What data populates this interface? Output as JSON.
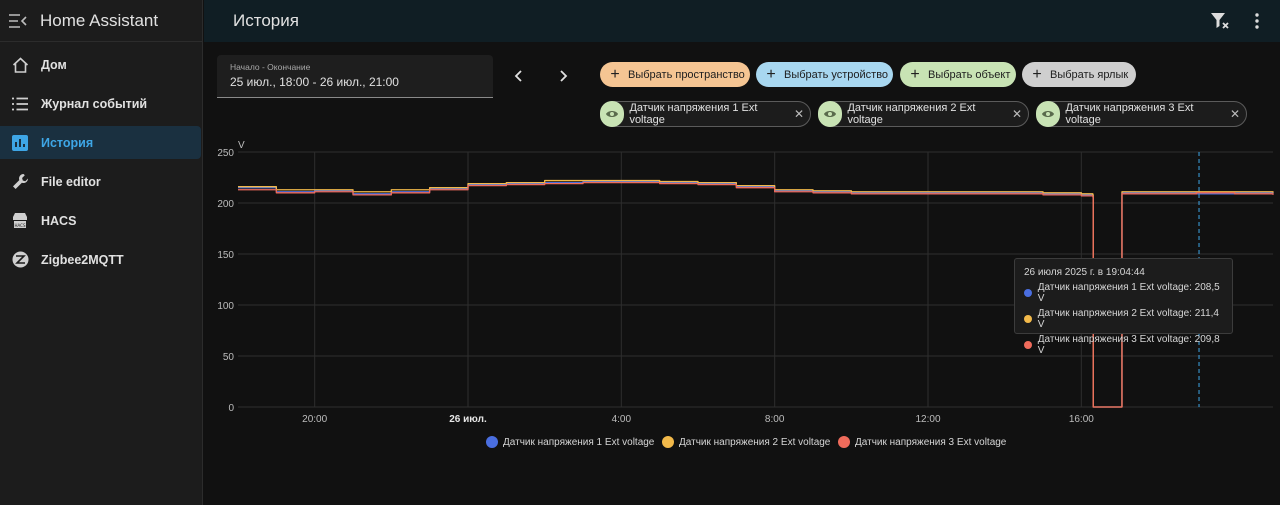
{
  "app": {
    "title": "Home Assistant"
  },
  "sidebar": {
    "items": [
      {
        "label": "Дом",
        "icon": "home-icon"
      },
      {
        "label": "Журнал событий",
        "icon": "logbook-icon"
      },
      {
        "label": "История",
        "icon": "history-chart-icon",
        "active": true
      },
      {
        "label": "File editor",
        "icon": "wrench-icon"
      },
      {
        "label": "HACS",
        "icon": "hacs-icon"
      },
      {
        "label": "Zigbee2MQTT",
        "icon": "zigbee-icon"
      }
    ]
  },
  "header": {
    "title": "История"
  },
  "date_picker": {
    "label": "Начало - Окончание",
    "value": "25 июл., 18:00 - 26 июл., 21:00"
  },
  "target_chips": [
    {
      "label": "Выбрать пространство",
      "color": "#f5c593"
    },
    {
      "label": "Выбрать устройство",
      "color": "#a8d7f0"
    },
    {
      "label": "Выбрать объект",
      "color": "#c8e3b4"
    },
    {
      "label": "Выбрать ярлык",
      "color": "#cfcfcf"
    }
  ],
  "entities": [
    {
      "label": "Датчик напряжения 1 Ext voltage"
    },
    {
      "label": "Датчик напряжения 2 Ext voltage"
    },
    {
      "label": "Датчик напряжения 3 Ext voltage"
    }
  ],
  "tooltip": {
    "title": "26 июля 2025 г. в 19:04:44",
    "rows": [
      {
        "text": "Датчик напряжения 1 Ext voltage: 208,5 V",
        "color": "#4a6ee0"
      },
      {
        "text": "Датчик напряжения 2 Ext voltage: 211,4 V",
        "color": "#f2b94a"
      },
      {
        "text": "Датчик напряжения 3 Ext voltage: 209,8 V",
        "color": "#ef6b5b"
      }
    ]
  },
  "chart_data": {
    "type": "line",
    "ylabel": "V",
    "ylim": [
      0,
      250
    ],
    "yticks": [
      "0",
      "50",
      "100",
      "150",
      "200",
      "250"
    ],
    "xticks": [
      {
        "label": "20:00",
        "hour": 2,
        "bold": false
      },
      {
        "label": "26 июл.",
        "hour": 6,
        "bold": true
      },
      {
        "label": "4:00",
        "hour": 10,
        "bold": false
      },
      {
        "label": "8:00",
        "hour": 14,
        "bold": false
      },
      {
        "label": "12:00",
        "hour": 18,
        "bold": false
      },
      {
        "label": "16:00",
        "hour": 22,
        "bold": false
      }
    ],
    "x_range_hours_from_start": [
      0,
      27
    ],
    "cursor_hour": 25.07,
    "grid": true,
    "legend_position": "bottom-center",
    "series": [
      {
        "name": "Датчик напряжения 1 Ext voltage",
        "color": "#4a6ee0",
        "points": [
          [
            0,
            215
          ],
          [
            1,
            211
          ],
          [
            2,
            212
          ],
          [
            3,
            209
          ],
          [
            4,
            211
          ],
          [
            5,
            214
          ],
          [
            6,
            218
          ],
          [
            7,
            219
          ],
          [
            8,
            220
          ],
          [
            9,
            221
          ],
          [
            10,
            221
          ],
          [
            11,
            220
          ],
          [
            12,
            219
          ],
          [
            13,
            216
          ],
          [
            14,
            212
          ],
          [
            15,
            211
          ],
          [
            16,
            210
          ],
          [
            17,
            210
          ],
          [
            18,
            210
          ],
          [
            19,
            210
          ],
          [
            20,
            210
          ],
          [
            21,
            209
          ],
          [
            22,
            208
          ],
          [
            22.3,
            207
          ],
          [
            22.31,
            0
          ],
          [
            23.05,
            0
          ],
          [
            23.06,
            210
          ],
          [
            24,
            210
          ],
          [
            25,
            209
          ],
          [
            26,
            210
          ],
          [
            27,
            209
          ]
        ]
      },
      {
        "name": "Датчик напряжения 2 Ext voltage",
        "color": "#f2b94a",
        "points": [
          [
            0,
            216
          ],
          [
            1,
            213
          ],
          [
            2,
            213
          ],
          [
            3,
            211
          ],
          [
            4,
            213
          ],
          [
            5,
            215
          ],
          [
            6,
            219
          ],
          [
            7,
            220
          ],
          [
            8,
            222
          ],
          [
            9,
            222
          ],
          [
            10,
            222
          ],
          [
            11,
            221
          ],
          [
            12,
            220
          ],
          [
            13,
            217
          ],
          [
            14,
            213
          ],
          [
            15,
            212
          ],
          [
            16,
            211
          ],
          [
            17,
            211
          ],
          [
            18,
            211
          ],
          [
            19,
            211
          ],
          [
            20,
            211
          ],
          [
            21,
            210
          ],
          [
            22,
            209
          ],
          [
            22.3,
            208
          ],
          [
            22.31,
            0
          ],
          [
            22.36,
            0
          ],
          [
            22.37,
            0
          ],
          [
            23.06,
            211
          ],
          [
            24,
            211
          ],
          [
            25,
            211
          ],
          [
            26,
            211
          ],
          [
            27,
            210
          ]
        ]
      },
      {
        "name": "Датчик напряжения 3 Ext voltage",
        "color": "#ef6b5b",
        "points": [
          [
            0,
            213
          ],
          [
            1,
            210
          ],
          [
            2,
            211
          ],
          [
            3,
            208
          ],
          [
            4,
            210
          ],
          [
            5,
            213
          ],
          [
            6,
            217
          ],
          [
            7,
            218
          ],
          [
            8,
            219
          ],
          [
            9,
            220
          ],
          [
            10,
            220
          ],
          [
            11,
            219
          ],
          [
            12,
            218
          ],
          [
            13,
            215
          ],
          [
            14,
            211
          ],
          [
            15,
            210
          ],
          [
            16,
            209
          ],
          [
            17,
            209
          ],
          [
            18,
            209
          ],
          [
            19,
            209
          ],
          [
            20,
            209
          ],
          [
            21,
            208
          ],
          [
            22,
            207
          ],
          [
            22.3,
            206
          ],
          [
            22.31,
            0
          ],
          [
            22.38,
            0
          ],
          [
            22.39,
            0
          ],
          [
            23.06,
            209
          ],
          [
            24,
            209
          ],
          [
            25,
            210
          ],
          [
            26,
            209
          ],
          [
            27,
            208
          ]
        ]
      }
    ]
  }
}
